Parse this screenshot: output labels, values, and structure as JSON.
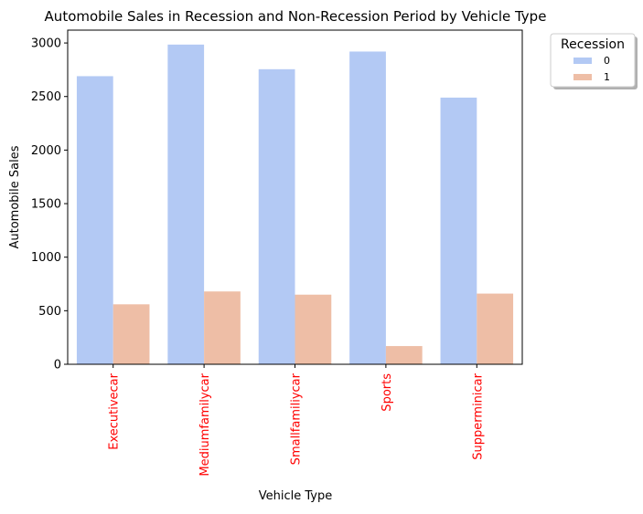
{
  "chart_data": {
    "type": "bar",
    "title": "Automobile Sales in Recession and Non-Recession Period by Vehicle Type",
    "xlabel": "Vehicle Type",
    "ylabel": "Automobile Sales",
    "categories": [
      "Executivecar",
      "Mediumfamilycar",
      "Smallfamiliycar",
      "Sports",
      "Supperminicar"
    ],
    "series": [
      {
        "name": "0",
        "values": [
          2690,
          2985,
          2755,
          2920,
          2490
        ],
        "color": "#b3c9f4"
      },
      {
        "name": "1",
        "values": [
          560,
          680,
          650,
          170,
          660
        ],
        "color": "#eebea6"
      }
    ],
    "ylim": [
      0,
      3120
    ],
    "yticks": [
      0,
      500,
      1000,
      1500,
      2000,
      2500,
      3000
    ],
    "tick_label_color_x": "#ff0000",
    "legend": {
      "title": "Recession",
      "placement": "outside-top-right"
    },
    "grid": false
  }
}
